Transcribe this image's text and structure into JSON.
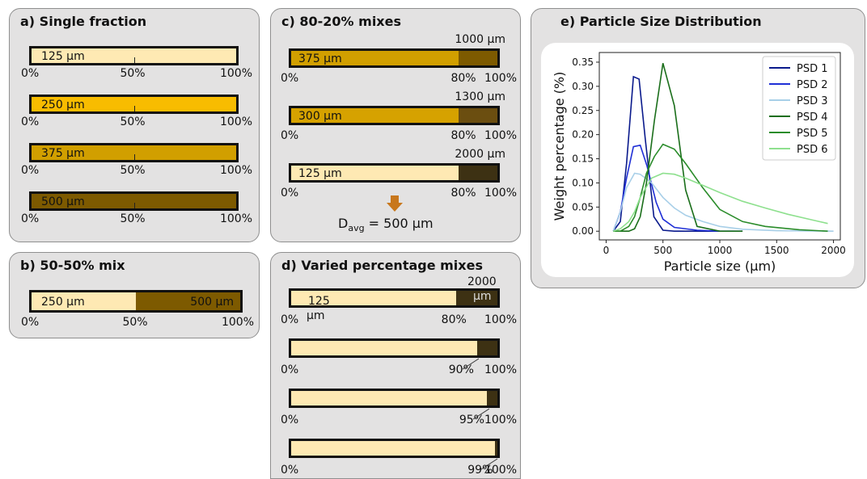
{
  "panel_a": {
    "title": "a) Single fraction",
    "bars": [
      {
        "label": "125 µm",
        "color": "#fee9b3"
      },
      {
        "label": "250 µm",
        "color": "#f8bc00"
      },
      {
        "label": "375 µm",
        "color": "#d19f00"
      },
      {
        "label": "500 µm",
        "color": "#7d5a00"
      }
    ],
    "ticks": [
      "0%",
      "50%",
      "100%"
    ]
  },
  "panel_b": {
    "title": "b) 50-50% mix",
    "left_label": "250 µm",
    "right_label": "500 µm",
    "ticks": [
      "0%",
      "50%",
      "100%"
    ]
  },
  "panel_c": {
    "title": "c) 80-20% mixes",
    "bars": [
      {
        "fine_label": "375 µm",
        "coarse_label": "1000 µm",
        "fine_color": "#d19f00",
        "coarse_color": "#7d5a00"
      },
      {
        "fine_label": "300 µm",
        "coarse_label": "1300 µm",
        "fine_color": "#d6a200",
        "coarse_color": "#6b4e10"
      },
      {
        "fine_label": "125 µm",
        "coarse_label": "2000 µm",
        "fine_color": "#fee9b3",
        "coarse_color": "#3d3113"
      }
    ],
    "ticks": [
      "0%",
      "80%",
      "100%"
    ],
    "davg_prefix": "D",
    "davg_sub": "avg",
    "davg_value": "= 500 µm"
  },
  "panel_d": {
    "title": "d) Varied percentage mixes",
    "first_fine_label_line1": "125",
    "first_fine_label_line2": "µm",
    "first_coarse_label_line1": "2000",
    "first_coarse_label_line2": "µm",
    "bars": [
      {
        "split_label": "80%",
        "fine_fraction": 0.8
      },
      {
        "split_label": "90%",
        "fine_fraction": 0.9
      },
      {
        "split_label": "95%",
        "fine_fraction": 0.95
      },
      {
        "split_label": "99%",
        "fine_fraction": 0.99
      }
    ],
    "left_tick": "0%",
    "right_tick": "100%"
  },
  "panel_e": {
    "title": "e) Particle Size Distribution"
  },
  "chart_data": {
    "type": "line",
    "title": "",
    "xlabel": "Particle size (µm)",
    "ylabel": "Weight percentage (%)",
    "xlim": [
      -60,
      2060
    ],
    "ylim": [
      -0.018,
      0.37
    ],
    "xticks": [
      0,
      500,
      1000,
      1500,
      2000
    ],
    "yticks": [
      0.0,
      0.05,
      0.1,
      0.15,
      0.2,
      0.25,
      0.3,
      0.35
    ],
    "legend_position": "top-right",
    "series": [
      {
        "name": "PSD 1",
        "color": "#0a1a8c",
        "x": [
          63,
          125,
          180,
          240,
          290,
          345,
          420,
          500,
          600,
          800,
          1000
        ],
        "y": [
          0.0,
          0.02,
          0.14,
          0.32,
          0.315,
          0.19,
          0.03,
          0.002,
          0.0,
          0.0,
          0.0
        ]
      },
      {
        "name": "PSD 2",
        "color": "#1f2fd6",
        "x": [
          63,
          125,
          180,
          240,
          300,
          360,
          440,
          500,
          600,
          800,
          1000,
          1200
        ],
        "y": [
          0.0,
          0.04,
          0.11,
          0.175,
          0.178,
          0.135,
          0.06,
          0.025,
          0.008,
          0.002,
          0.0,
          0.0
        ]
      },
      {
        "name": "PSD 3",
        "color": "#a8cfe8",
        "x": [
          63,
          125,
          180,
          250,
          300,
          400,
          500,
          600,
          700,
          850,
          1000,
          1200,
          1500,
          2000
        ],
        "y": [
          0.0,
          0.04,
          0.09,
          0.12,
          0.118,
          0.1,
          0.07,
          0.048,
          0.033,
          0.02,
          0.01,
          0.004,
          0.001,
          0.0
        ]
      },
      {
        "name": "PSD 4",
        "color": "#1a6e1a",
        "x": [
          63,
          125,
          200,
          250,
          300,
          355,
          425,
          500,
          600,
          700,
          800,
          1000,
          1200
        ],
        "y": [
          0.0,
          0.0,
          0.0,
          0.005,
          0.03,
          0.1,
          0.23,
          0.348,
          0.26,
          0.085,
          0.01,
          0.0,
          0.0
        ]
      },
      {
        "name": "PSD 5",
        "color": "#2a8c2a",
        "x": [
          63,
          125,
          200,
          250,
          300,
          355,
          425,
          500,
          600,
          700,
          850,
          1000,
          1200,
          1400,
          1700,
          1950
        ],
        "y": [
          0.0,
          0.0,
          0.01,
          0.03,
          0.07,
          0.12,
          0.155,
          0.18,
          0.17,
          0.14,
          0.09,
          0.045,
          0.02,
          0.01,
          0.003,
          0.0
        ]
      },
      {
        "name": "PSD 6",
        "color": "#8ee08e",
        "x": [
          63,
          125,
          200,
          250,
          300,
          400,
          500,
          600,
          700,
          850,
          1000,
          1200,
          1400,
          1600,
          1800,
          1950
        ],
        "y": [
          0.0,
          0.005,
          0.02,
          0.04,
          0.07,
          0.11,
          0.12,
          0.118,
          0.11,
          0.095,
          0.08,
          0.062,
          0.048,
          0.035,
          0.024,
          0.016
        ]
      }
    ]
  }
}
